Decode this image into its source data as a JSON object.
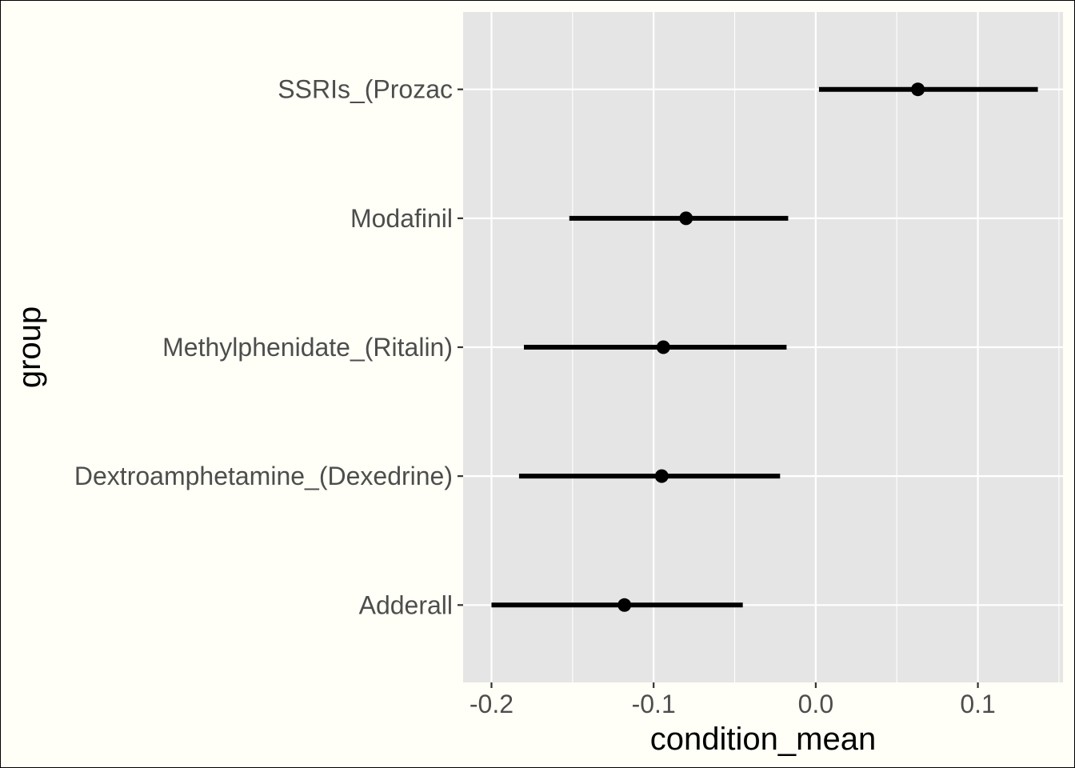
{
  "chart_data": {
    "type": "pointrange",
    "xlabel": "condition_mean",
    "ylabel": "group",
    "xlim": [
      -0.2175,
      0.1525
    ],
    "x_ticks": [
      -0.2,
      -0.1,
      0.0,
      0.1
    ],
    "x_tick_labels": [
      "-0.2",
      "-0.1",
      "0.0",
      "0.1"
    ],
    "grid": true,
    "categories": [
      "Adderall",
      "Dextroamphetamine_(Dexedrine)",
      "Methylphenidate_(Ritalin)",
      "Modafinil",
      "SSRIs_(Prozac"
    ],
    "points": [
      {
        "group": "Adderall",
        "mean": -0.118,
        "low": -0.2,
        "high": -0.045
      },
      {
        "group": "Dextroamphetamine_(Dexedrine)",
        "mean": -0.095,
        "low": -0.183,
        "high": -0.022
      },
      {
        "group": "Methylphenidate_(Ritalin)",
        "mean": -0.094,
        "low": -0.18,
        "high": -0.018
      },
      {
        "group": "Modafinil",
        "mean": -0.08,
        "low": -0.152,
        "high": -0.017
      },
      {
        "group": "SSRIs_(Prozac",
        "mean": 0.063,
        "low": 0.002,
        "high": 0.137
      }
    ],
    "colors": {
      "panel": "#E5E5E5",
      "grid": "#FFFFFF",
      "mark": "#000000",
      "tick_text": "#4D4D4D",
      "page_background": "#FFFFF7"
    }
  }
}
